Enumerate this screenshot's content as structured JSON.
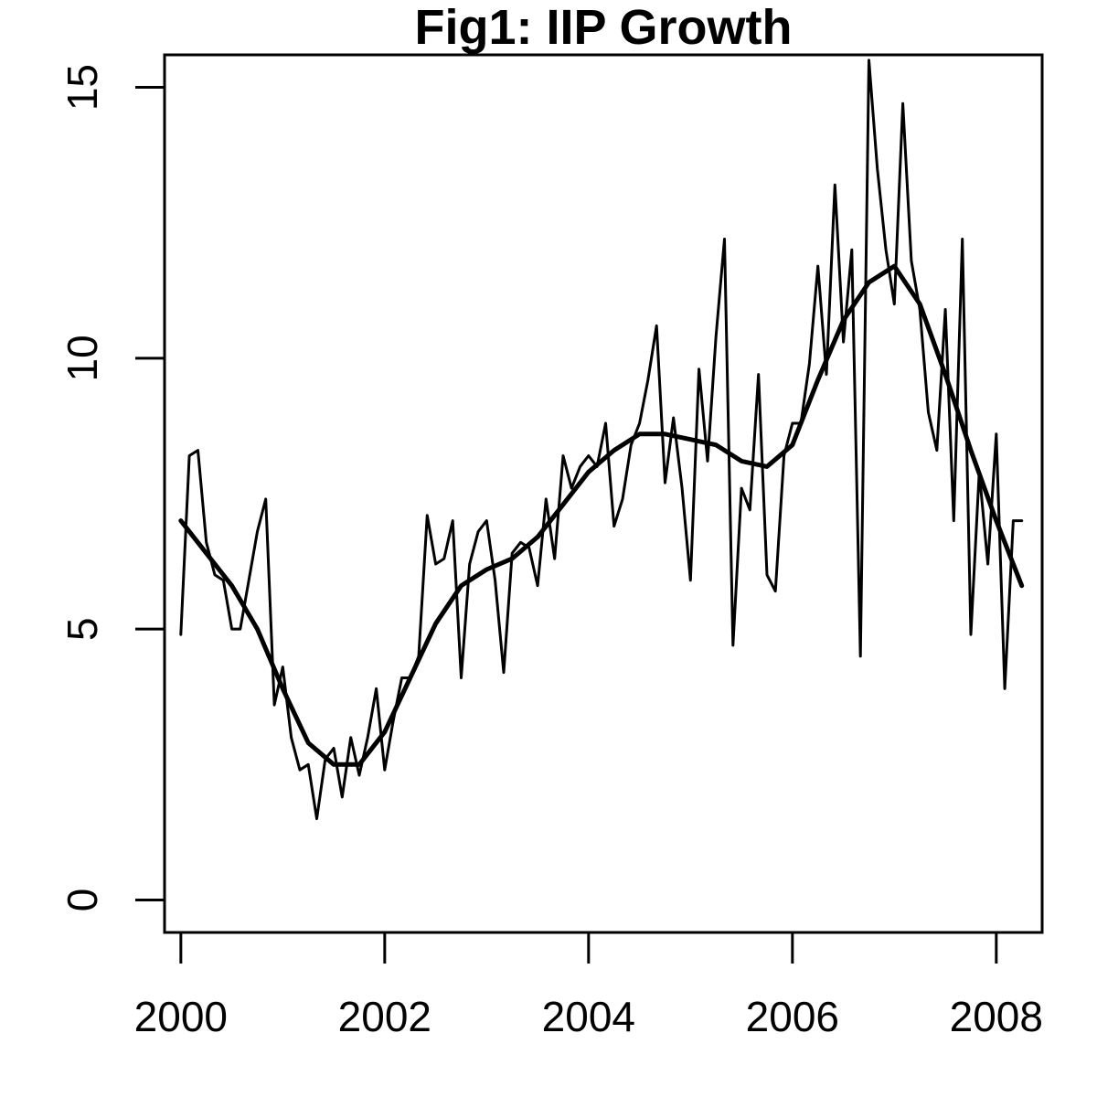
{
  "chart_data": {
    "type": "line",
    "title": "Fig1: IIP Growth",
    "xlabel": "",
    "ylabel": "",
    "xlim": [
      1999.84,
      2008.45
    ],
    "ylim": [
      -0.6,
      15.6
    ],
    "x_ticks": [
      2000,
      2002,
      2004,
      2006,
      2008
    ],
    "x_tick_labels": [
      "2000",
      "2002",
      "2004",
      "2006",
      "2008"
    ],
    "y_ticks": [
      0,
      5,
      10,
      15
    ],
    "y_tick_labels": [
      "0",
      "5",
      "10",
      "15"
    ],
    "grid": false,
    "legend": "none",
    "line_color": "#000000",
    "series": [
      {
        "style": "thin",
        "x": [
          2000.0,
          2000.083,
          2000.167,
          2000.25,
          2000.333,
          2000.417,
          2000.5,
          2000.583,
          2000.667,
          2000.75,
          2000.833,
          2000.917,
          2001.0,
          2001.083,
          2001.167,
          2001.25,
          2001.333,
          2001.417,
          2001.5,
          2001.583,
          2001.667,
          2001.75,
          2001.833,
          2001.917,
          2002.0,
          2002.083,
          2002.167,
          2002.25,
          2002.333,
          2002.417,
          2002.5,
          2002.583,
          2002.667,
          2002.75,
          2002.833,
          2002.917,
          2003.0,
          2003.083,
          2003.167,
          2003.25,
          2003.333,
          2003.417,
          2003.5,
          2003.583,
          2003.667,
          2003.75,
          2003.833,
          2003.917,
          2004.0,
          2004.083,
          2004.167,
          2004.25,
          2004.333,
          2004.417,
          2004.5,
          2004.583,
          2004.667,
          2004.75,
          2004.833,
          2004.917,
          2005.0,
          2005.083,
          2005.167,
          2005.25,
          2005.333,
          2005.417,
          2005.5,
          2005.583,
          2005.667,
          2005.75,
          2005.833,
          2005.917,
          2006.0,
          2006.083,
          2006.167,
          2006.25,
          2006.333,
          2006.417,
          2006.5,
          2006.583,
          2006.667,
          2006.75,
          2006.833,
          2006.917,
          2007.0,
          2007.083,
          2007.167,
          2007.25,
          2007.333,
          2007.417,
          2007.5,
          2007.583,
          2007.667,
          2007.75,
          2007.833,
          2007.917,
          2008.0,
          2008.083,
          2008.167,
          2008.25
        ],
        "y": [
          4.9,
          8.2,
          8.3,
          6.6,
          6.0,
          5.9,
          5.0,
          5.0,
          5.9,
          6.8,
          7.4,
          3.6,
          4.3,
          3.0,
          2.4,
          2.5,
          1.5,
          2.6,
          2.8,
          1.9,
          3.0,
          2.3,
          3.0,
          3.9,
          2.4,
          3.3,
          4.1,
          4.1,
          4.5,
          7.1,
          6.2,
          6.3,
          7.0,
          4.1,
          6.2,
          6.8,
          7.0,
          5.9,
          4.2,
          6.4,
          6.6,
          6.5,
          5.8,
          7.4,
          6.3,
          8.2,
          7.6,
          8.0,
          8.2,
          8.0,
          8.8,
          6.9,
          7.4,
          8.4,
          8.8,
          9.6,
          10.6,
          7.7,
          8.9,
          7.6,
          5.9,
          9.8,
          8.1,
          10.4,
          12.2,
          4.7,
          7.6,
          7.2,
          9.7,
          6.0,
          5.7,
          8.2,
          8.8,
          8.8,
          9.9,
          11.7,
          9.7,
          13.2,
          10.3,
          12.0,
          4.5,
          15.5,
          13.5,
          12.0,
          11.0,
          14.7,
          11.8,
          10.9,
          9.0,
          8.3,
          10.9,
          7.0,
          12.2,
          4.9,
          7.9,
          6.2,
          8.6,
          3.9,
          7.0,
          7.0
        ]
      },
      {
        "style": "thick",
        "x": [
          2000.0,
          2000.25,
          2000.5,
          2000.75,
          2001.0,
          2001.25,
          2001.5,
          2001.75,
          2002.0,
          2002.25,
          2002.5,
          2002.75,
          2003.0,
          2003.25,
          2003.5,
          2003.75,
          2004.0,
          2004.25,
          2004.5,
          2004.75,
          2005.0,
          2005.25,
          2005.5,
          2005.75,
          2006.0,
          2006.25,
          2006.5,
          2006.75,
          2007.0,
          2007.25,
          2007.5,
          2007.75,
          2008.0,
          2008.25
        ],
        "y": [
          7.0,
          6.4,
          5.8,
          5.0,
          3.9,
          2.9,
          2.5,
          2.5,
          3.1,
          4.1,
          5.1,
          5.8,
          6.1,
          6.3,
          6.7,
          7.3,
          7.9,
          8.3,
          8.6,
          8.6,
          8.5,
          8.4,
          8.1,
          8.0,
          8.4,
          9.6,
          10.7,
          11.4,
          11.7,
          11.0,
          9.7,
          8.3,
          7.0,
          5.8
        ]
      }
    ]
  }
}
